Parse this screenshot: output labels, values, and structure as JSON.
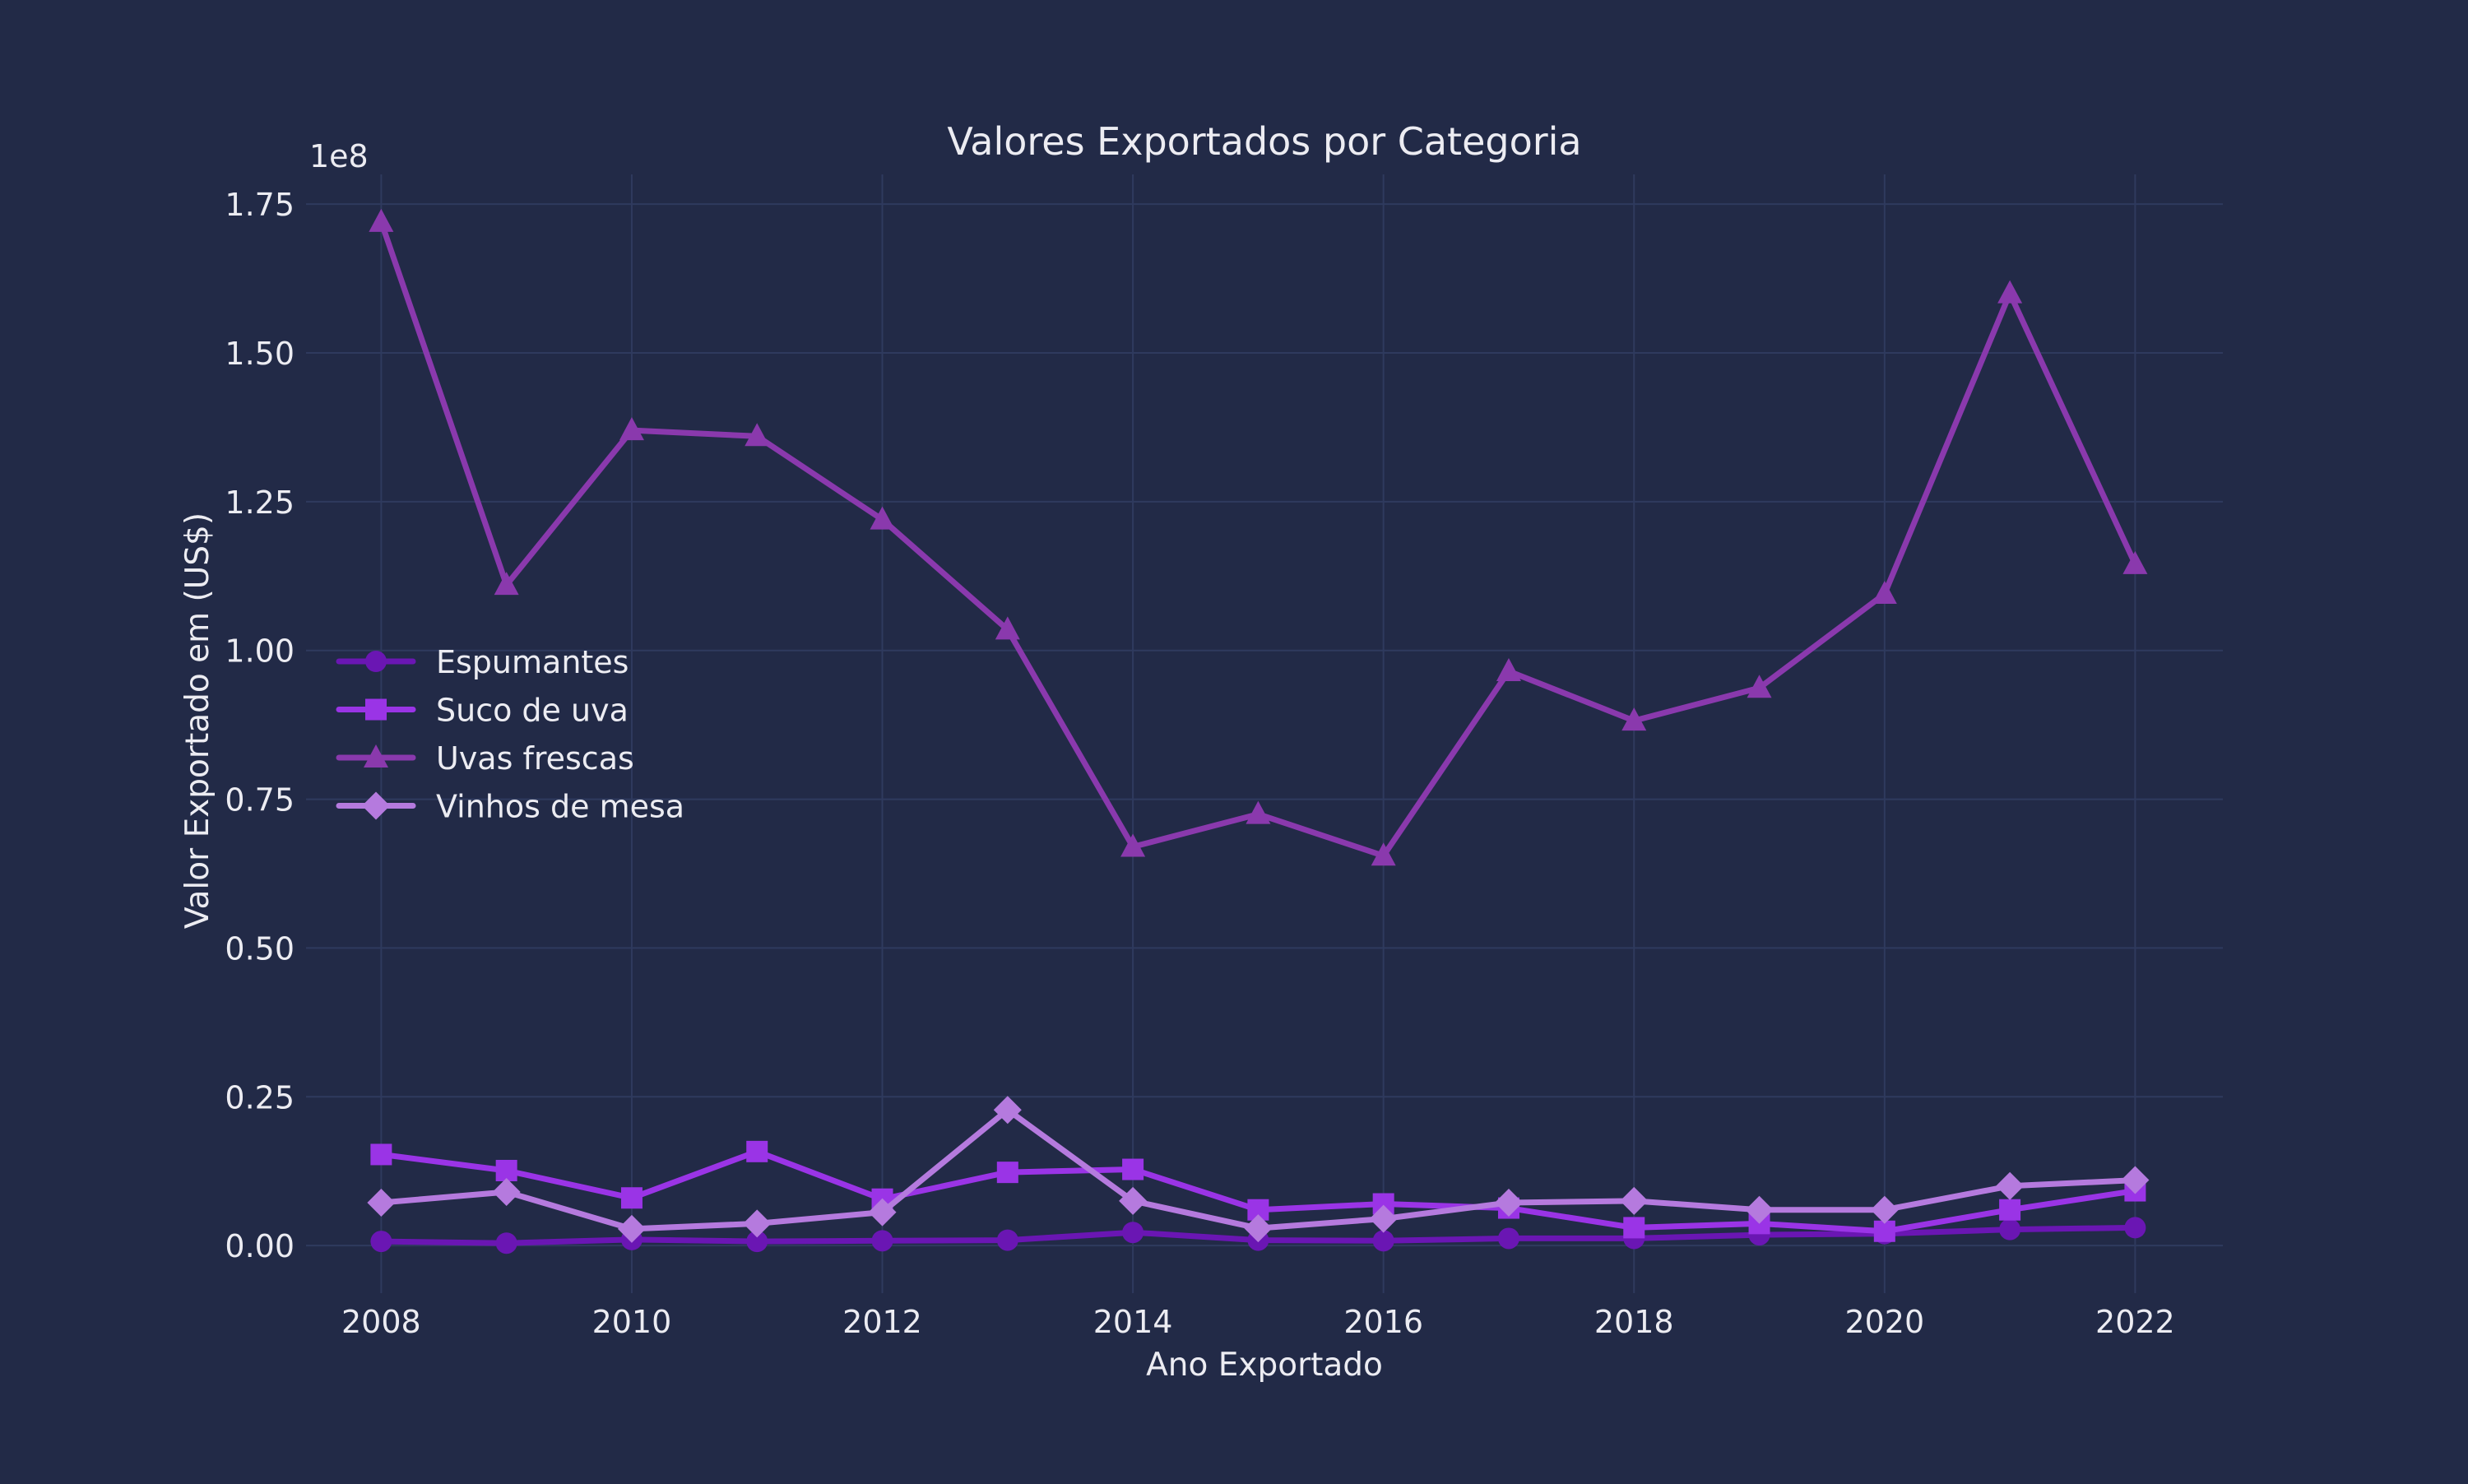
{
  "colors": {
    "background": "#222a47",
    "grid": "#2f3a5e",
    "text": "#ececf2",
    "espumantes": "#6a16b3",
    "suco_de_uva": "#9a34e6",
    "uvas_frescas": "#8a39ad",
    "vinhos_de_mesa": "#b57ade"
  },
  "chart_data": {
    "type": "line",
    "title": "Valores Exportados por Categoria",
    "xlabel": "Ano Exportado",
    "ylabel": "Valor Exportado em (US$)",
    "y_offset_label": "1e8",
    "x": [
      2008,
      2009,
      2010,
      2011,
      2012,
      2013,
      2014,
      2015,
      2016,
      2017,
      2018,
      2019,
      2020,
      2021,
      2022
    ],
    "xlim": [
      2007.4,
      2022.7
    ],
    "ylim": [
      -0.08,
      1.8
    ],
    "x_ticks": [
      2008,
      2010,
      2012,
      2014,
      2016,
      2018,
      2020,
      2022
    ],
    "x_tick_labels": [
      "2008",
      "2010",
      "2012",
      "2014",
      "2016",
      "2018",
      "2020",
      "2022"
    ],
    "y_ticks": [
      0,
      0.25,
      0.5,
      0.75,
      1.0,
      1.25,
      1.5,
      1.75
    ],
    "y_tick_labels": [
      "0.00",
      "0.25",
      "0.50",
      "0.75",
      "1.00",
      "1.25",
      "1.50",
      "1.75"
    ],
    "grid": true,
    "legend_position": "center-left",
    "series": [
      {
        "name": "Espumantes",
        "marker": "circle",
        "color_key": "espumantes",
        "values": [
          0.007,
          0.004,
          0.01,
          0.007,
          0.008,
          0.009,
          0.022,
          0.009,
          0.008,
          0.012,
          0.012,
          0.018,
          0.02,
          0.027,
          0.03
        ]
      },
      {
        "name": "Suco de uva",
        "marker": "square",
        "color_key": "suco_de_uva",
        "values": [
          0.153,
          0.126,
          0.08,
          0.158,
          0.078,
          0.123,
          0.128,
          0.06,
          0.07,
          0.063,
          0.03,
          0.037,
          0.024,
          0.06,
          0.092
        ]
      },
      {
        "name": "Uvas frescas",
        "marker": "triangle",
        "color_key": "uvas_frescas",
        "values": [
          1.72,
          1.11,
          1.37,
          1.36,
          1.22,
          1.035,
          0.67,
          0.725,
          0.655,
          0.965,
          0.882,
          0.937,
          1.095,
          1.6,
          1.145
        ]
      },
      {
        "name": "Vinhos de mesa",
        "marker": "diamond",
        "color_key": "vinhos_de_mesa",
        "values": [
          0.072,
          0.09,
          0.028,
          0.037,
          0.056,
          0.228,
          0.075,
          0.029,
          0.045,
          0.072,
          0.075,
          0.06,
          0.06,
          0.1,
          0.11
        ]
      }
    ]
  }
}
